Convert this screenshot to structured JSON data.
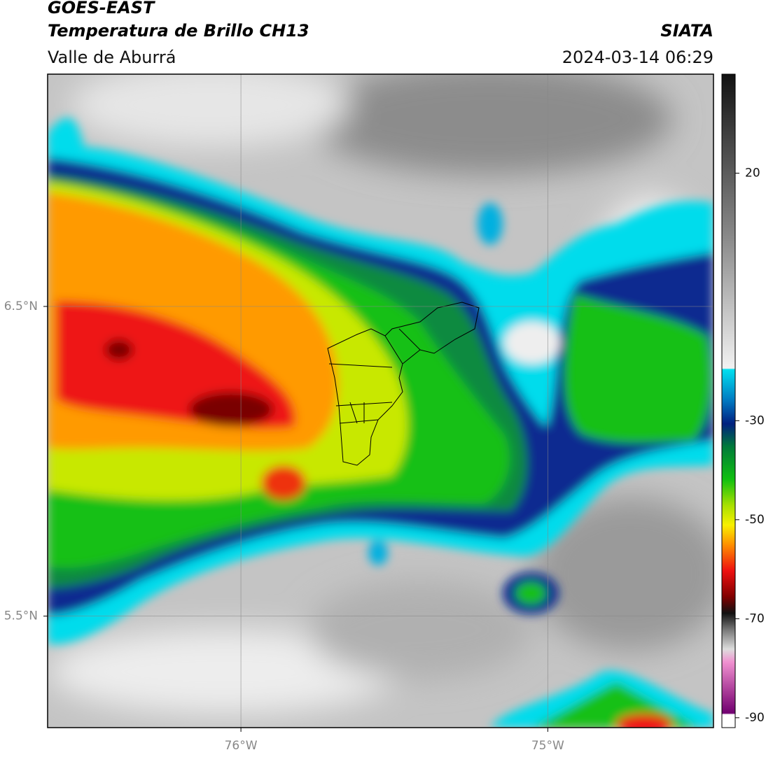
{
  "header": {
    "title": "GOES-EAST",
    "subtitle": "Temperatura de Brillo CH13",
    "region": "Valle de Aburrá",
    "agency": "SIATA",
    "datetime": "2024-03-14 06:29"
  },
  "map": {
    "xlim": [
      -76.63,
      -74.46
    ],
    "ylim": [
      5.14,
      7.25
    ],
    "xticks": [
      {
        "value": -76,
        "label": "76°W"
      },
      {
        "value": -75,
        "label": "75°W"
      }
    ],
    "yticks": [
      {
        "value": 6.5,
        "label": "6.5°N"
      },
      {
        "value": 5.5,
        "label": "5.5°N"
      }
    ],
    "grid": true
  },
  "colorbar": {
    "clim": [
      -92,
      40
    ],
    "ticks": [
      20,
      -30,
      -50,
      -70,
      -90
    ]
  }
}
